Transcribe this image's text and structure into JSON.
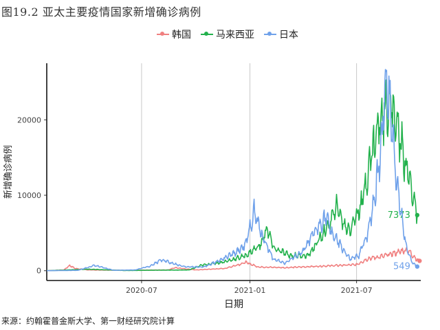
{
  "title": "图19.2 亚太主要疫情国家新增确诊病例",
  "source": "来源：约翰霍普金斯大学、第一财经研究院计算",
  "legend": [
    {
      "name": "韩国",
      "color": "#f08080"
    },
    {
      "name": "马来西亚",
      "color": "#22b14c"
    },
    {
      "name": "日本",
      "color": "#6fa1ea"
    }
  ],
  "chart_data": {
    "type": "line",
    "xlabel": "日期",
    "ylabel": "新增确诊病例",
    "x_ticks": [
      "2020-07",
      "2021-01",
      "2021-07"
    ],
    "y_ticks": [
      0,
      10000,
      20000
    ],
    "xlim": [
      "2020-01-22",
      "2021-10-18"
    ],
    "ylim": [
      -1300,
      27500
    ],
    "grid": "vertical",
    "legend_position": "top",
    "series": [
      {
        "name": "韩国",
        "color": "#f08080",
        "end_label": "",
        "points": [
          [
            "2020-01-22",
            0
          ],
          [
            "2020-02-20",
            100
          ],
          [
            "2020-03-01",
            700
          ],
          [
            "2020-03-10",
            300
          ],
          [
            "2020-04-01",
            100
          ],
          [
            "2020-06-01",
            50
          ],
          [
            "2020-08-15",
            100
          ],
          [
            "2020-08-27",
            400
          ],
          [
            "2020-10-01",
            100
          ],
          [
            "2020-11-20",
            300
          ],
          [
            "2020-12-25",
            1100
          ],
          [
            "2021-01-15",
            500
          ],
          [
            "2021-03-01",
            400
          ],
          [
            "2021-05-01",
            600
          ],
          [
            "2021-07-01",
            800
          ],
          [
            "2021-07-20",
            1600
          ],
          [
            "2021-08-15",
            1900
          ],
          [
            "2021-09-25",
            2800
          ],
          [
            "2021-10-10",
            1600
          ],
          [
            "2021-10-16",
            1300
          ]
        ]
      },
      {
        "name": "马来西亚",
        "color": "#22b14c",
        "end_label": "7373",
        "points": [
          [
            "2020-01-22",
            0
          ],
          [
            "2020-03-15",
            150
          ],
          [
            "2020-04-01",
            200
          ],
          [
            "2020-06-01",
            30
          ],
          [
            "2020-09-20",
            100
          ],
          [
            "2020-10-10",
            700
          ],
          [
            "2020-11-20",
            1200
          ],
          [
            "2020-12-25",
            2000
          ],
          [
            "2021-01-20",
            3500
          ],
          [
            "2021-01-30",
            5700
          ],
          [
            "2021-02-10",
            3000
          ],
          [
            "2021-03-10",
            2000
          ],
          [
            "2021-04-10",
            2000
          ],
          [
            "2021-05-15",
            6000
          ],
          [
            "2021-05-29",
            8600
          ],
          [
            "2021-06-10",
            6000
          ],
          [
            "2021-06-20",
            5500
          ],
          [
            "2021-07-10",
            9000
          ],
          [
            "2021-07-25",
            15000
          ],
          [
            "2021-08-10",
            20000
          ],
          [
            "2021-08-25",
            23000
          ],
          [
            "2021-09-05",
            20000
          ],
          [
            "2021-09-20",
            15000
          ],
          [
            "2021-10-05",
            10000
          ],
          [
            "2021-10-12",
            7373
          ]
        ]
      },
      {
        "name": "日本",
        "color": "#6fa1ea",
        "end_label": "549",
        "points": [
          [
            "2020-01-22",
            0
          ],
          [
            "2020-03-15",
            50
          ],
          [
            "2020-04-12",
            700
          ],
          [
            "2020-05-15",
            50
          ],
          [
            "2020-06-20",
            100
          ],
          [
            "2020-07-15",
            600
          ],
          [
            "2020-08-05",
            1500
          ],
          [
            "2020-08-20",
            1000
          ],
          [
            "2020-09-15",
            500
          ],
          [
            "2020-10-15",
            500
          ],
          [
            "2020-11-15",
            1500
          ],
          [
            "2020-12-10",
            2500
          ],
          [
            "2020-12-25",
            3500
          ],
          [
            "2021-01-08",
            7800
          ],
          [
            "2021-01-20",
            5000
          ],
          [
            "2021-02-10",
            1500
          ],
          [
            "2021-03-01",
            1000
          ],
          [
            "2021-04-01",
            2500
          ],
          [
            "2021-04-20",
            5000
          ],
          [
            "2021-05-10",
            7200
          ],
          [
            "2021-05-20",
            5000
          ],
          [
            "2021-06-20",
            1500
          ],
          [
            "2021-07-05",
            2000
          ],
          [
            "2021-07-20",
            5000
          ],
          [
            "2021-08-01",
            10000
          ],
          [
            "2021-08-10",
            15000
          ],
          [
            "2021-08-20",
            25800
          ],
          [
            "2021-08-28",
            21000
          ],
          [
            "2021-09-10",
            10000
          ],
          [
            "2021-09-25",
            2500
          ],
          [
            "2021-10-05",
            1000
          ],
          [
            "2021-10-12",
            549
          ]
        ]
      }
    ]
  }
}
